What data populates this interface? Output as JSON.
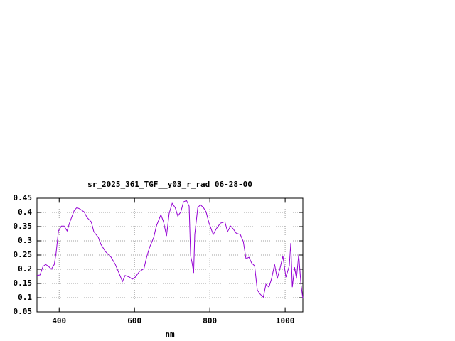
{
  "chart_data": {
    "type": "line",
    "title": "sr_2025_361_TGF__y03_r_rad 06-28-00",
    "x_label": "nm",
    "xlim": [
      341,
      1047
    ],
    "xticks": [
      400,
      600,
      800,
      1000
    ],
    "ylim": [
      0.05,
      0.45
    ],
    "yticks": [
      0.05,
      0.1,
      0.15,
      0.2,
      0.25,
      0.3,
      0.35,
      0.4,
      0.45
    ],
    "grid": true,
    "series": [
      {
        "color": "#9400d3",
        "x": [
          341,
          349,
          357,
          364,
          372,
          379,
          387,
          392,
          398,
          406,
          413,
          421,
          428,
          440,
          447,
          455,
          466,
          474,
          485,
          492,
          504,
          511,
          523,
          538,
          549,
          557,
          568,
          575,
          587,
          594,
          602,
          613,
          625,
          632,
          640,
          651,
          658,
          670,
          677,
          685,
          692,
          700,
          708,
          715,
          723,
          730,
          738,
          745,
          749,
          753,
          757,
          760,
          768,
          775,
          783,
          790,
          798,
          809,
          817,
          828,
          840,
          847,
          855,
          862,
          870,
          881,
          889,
          896,
          904,
          911,
          919,
          926,
          934,
          942,
          949,
          957,
          964,
          972,
          979,
          987,
          994,
          1002,
          1011,
          1015,
          1019,
          1025,
          1030,
          1036,
          1042,
          1047
        ],
        "values": [
          0.178,
          0.18,
          0.21,
          0.217,
          0.21,
          0.2,
          0.217,
          0.26,
          0.335,
          0.352,
          0.352,
          0.335,
          0.365,
          0.407,
          0.417,
          0.412,
          0.402,
          0.382,
          0.367,
          0.332,
          0.312,
          0.287,
          0.262,
          0.242,
          0.217,
          0.192,
          0.157,
          0.178,
          0.172,
          0.165,
          0.172,
          0.192,
          0.202,
          0.242,
          0.277,
          0.312,
          0.352,
          0.392,
          0.367,
          0.317,
          0.397,
          0.432,
          0.417,
          0.387,
          0.402,
          0.437,
          0.442,
          0.422,
          0.247,
          0.222,
          0.187,
          0.322,
          0.417,
          0.427,
          0.417,
          0.402,
          0.362,
          0.322,
          0.342,
          0.362,
          0.367,
          0.332,
          0.352,
          0.342,
          0.327,
          0.322,
          0.297,
          0.237,
          0.242,
          0.222,
          0.212,
          0.127,
          0.112,
          0.102,
          0.147,
          0.137,
          0.167,
          0.217,
          0.167,
          0.207,
          0.247,
          0.172,
          0.212,
          0.292,
          0.137,
          0.207,
          0.167,
          0.252,
          0.147,
          0.097
        ]
      }
    ]
  }
}
